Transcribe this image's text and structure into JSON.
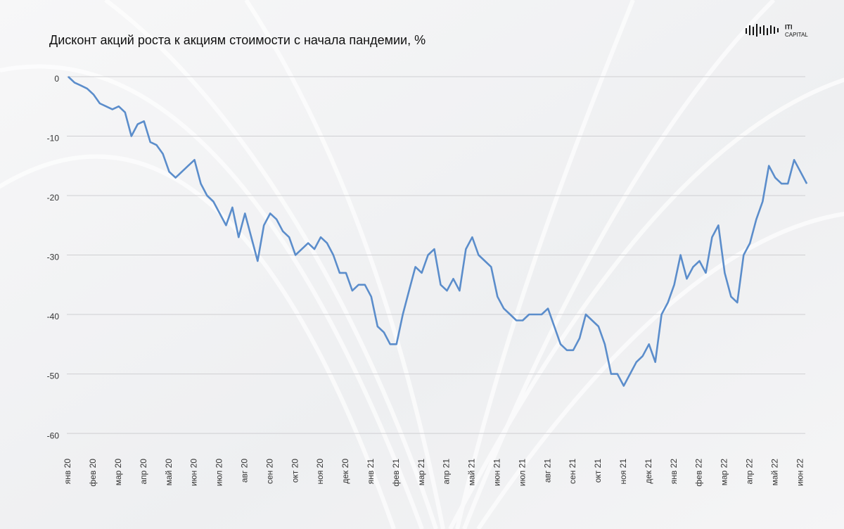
{
  "brand": {
    "line1": "ITI",
    "line2": "CAPITAL"
  },
  "chart_data": {
    "type": "line",
    "title": "Дисконт акций роста к акциям стоимости с начала пандемии, %",
    "categories": [
      "янв 20",
      null,
      null,
      null,
      "фев 20",
      null,
      null,
      null,
      "мар 20",
      null,
      null,
      null,
      "апр 20",
      null,
      null,
      null,
      "май 20",
      null,
      null,
      null,
      "июн 20",
      null,
      null,
      null,
      "июл 20",
      null,
      null,
      null,
      "авг 20",
      null,
      null,
      null,
      "сен 20",
      null,
      null,
      null,
      "окт 20",
      null,
      null,
      null,
      "ноя 20",
      null,
      null,
      null,
      "дек 20",
      null,
      null,
      null,
      "янв 21",
      null,
      null,
      null,
      "фев 21",
      null,
      null,
      null,
      "мар 21",
      null,
      null,
      null,
      "апр 21",
      null,
      null,
      null,
      "май 21",
      null,
      null,
      null,
      "июн 21",
      null,
      null,
      null,
      "июл 21",
      null,
      null,
      null,
      "авг 21",
      null,
      null,
      null,
      "сен 21",
      null,
      null,
      null,
      "окт 21",
      null,
      null,
      null,
      "ноя 21",
      null,
      null,
      null,
      "дек 21",
      null,
      null,
      null,
      "янв 22",
      null,
      null,
      null,
      "фев 22",
      null,
      null,
      null,
      "мар 22",
      null,
      null,
      null,
      "апр 22",
      null,
      null,
      null,
      "май 22",
      null,
      null,
      null,
      "июн 22",
      null
    ],
    "values": [
      0,
      -1,
      -1.5,
      -2,
      -3,
      -4.5,
      -5,
      -5.5,
      -5,
      -6,
      -10,
      -8,
      -7.5,
      -11,
      -11.5,
      -13,
      -16,
      -17,
      -16,
      -15,
      -14,
      -18,
      -20,
      -21,
      -23,
      -25,
      -22,
      -27,
      -23,
      -27,
      -31,
      -25,
      -23,
      -24,
      -26,
      -27,
      -30,
      -29,
      -28,
      -29,
      -27,
      -28,
      -30,
      -33,
      -33,
      -36,
      -35,
      -35,
      -37,
      -42,
      -43,
      -45,
      -45,
      -40,
      -36,
      -32,
      -33,
      -30,
      -29,
      -35,
      -36,
      -34,
      -36,
      -29,
      -27,
      -30,
      -31,
      -32,
      -37,
      -39,
      -40,
      -41,
      -41,
      -40,
      -40,
      -40,
      -39,
      -42,
      -45,
      -46,
      -46,
      -44,
      -40,
      -41,
      -42,
      -45,
      -50,
      -50,
      -52,
      -50,
      -48,
      -47,
      -45,
      -48,
      -40,
      -38,
      -35,
      -30,
      -34,
      -32,
      -31,
      -33,
      -27,
      -25,
      -33,
      -37,
      -38,
      -30,
      -28,
      -24,
      -21,
      -15,
      -17,
      -18,
      -18,
      -14,
      -16,
      -18
    ],
    "color": "#5b8dcb",
    "ylim": [
      -62,
      1
    ],
    "yticks": [
      0,
      -10,
      -20,
      -30,
      -40,
      -50,
      -60
    ],
    "grid": true
  }
}
